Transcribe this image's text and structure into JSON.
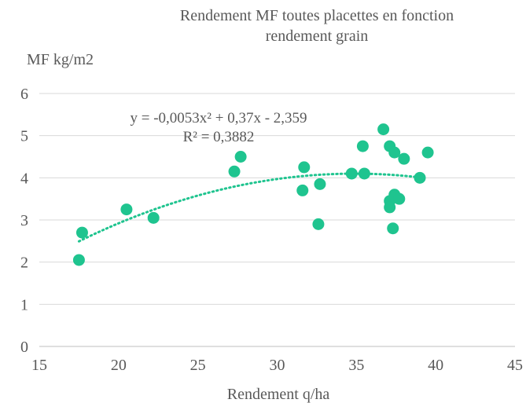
{
  "chart_data": {
    "type": "scatter",
    "title_lines": [
      "Rendement MF toutes placettes en fonction",
      "rendement grain"
    ],
    "xlabel": "Rendement q/ha",
    "ylabel": "MF kg/m2",
    "xlim": [
      15,
      45
    ],
    "ylim": [
      0,
      6
    ],
    "xticks": [
      15,
      20,
      25,
      30,
      35,
      40,
      45
    ],
    "yticks": [
      0,
      1,
      2,
      3,
      4,
      5,
      6
    ],
    "grid": "horizontal",
    "marker_color": "#1fc48f",
    "trend_color": "#1fc48f",
    "trendline": {
      "type": "polynomial",
      "coefficients": [
        -0.0053,
        0.37,
        -2.359
      ],
      "equation": "y = -0,0053x² + 0,37x - 2,359",
      "r2": "R² = 0,3882",
      "x_range": [
        17.5,
        39
      ]
    },
    "points": [
      {
        "x": 17.5,
        "y": 2.05
      },
      {
        "x": 17.7,
        "y": 2.7
      },
      {
        "x": 20.5,
        "y": 3.25
      },
      {
        "x": 22.2,
        "y": 3.05
      },
      {
        "x": 27.3,
        "y": 4.15
      },
      {
        "x": 27.7,
        "y": 4.5
      },
      {
        "x": 31.6,
        "y": 3.7
      },
      {
        "x": 31.7,
        "y": 4.25
      },
      {
        "x": 32.6,
        "y": 2.9
      },
      {
        "x": 32.7,
        "y": 3.85
      },
      {
        "x": 34.7,
        "y": 4.1
      },
      {
        "x": 35.4,
        "y": 4.75
      },
      {
        "x": 35.5,
        "y": 4.1
      },
      {
        "x": 36.7,
        "y": 5.15
      },
      {
        "x": 37.1,
        "y": 4.75
      },
      {
        "x": 37.1,
        "y": 3.45
      },
      {
        "x": 37.1,
        "y": 3.3
      },
      {
        "x": 37.3,
        "y": 2.8
      },
      {
        "x": 37.4,
        "y": 3.6
      },
      {
        "x": 37.4,
        "y": 4.6
      },
      {
        "x": 37.7,
        "y": 3.5
      },
      {
        "x": 38.0,
        "y": 4.45
      },
      {
        "x": 39.0,
        "y": 4.0
      },
      {
        "x": 39.5,
        "y": 4.6
      }
    ]
  }
}
